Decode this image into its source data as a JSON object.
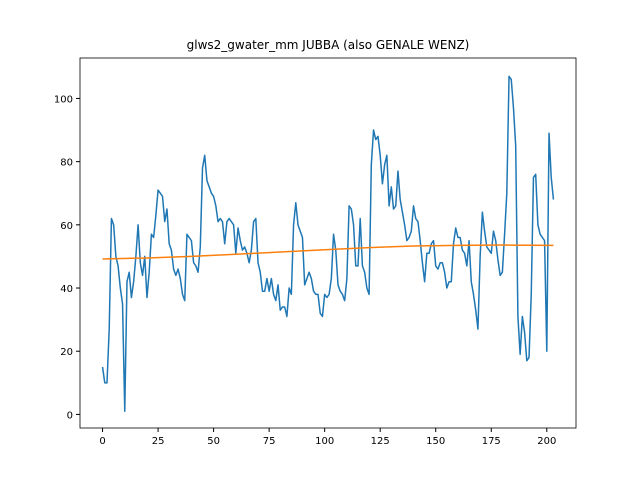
{
  "chart_data": {
    "type": "line",
    "title": "glws2_gwater_mm JUBBA (also GENALE WENZ)",
    "x": [
      0,
      1,
      2,
      3,
      4,
      5,
      6,
      7,
      8,
      9,
      10,
      11,
      12,
      13,
      14,
      15,
      16,
      17,
      18,
      19,
      20,
      21,
      22,
      23,
      24,
      25,
      26,
      27,
      28,
      29,
      30,
      31,
      32,
      33,
      34,
      35,
      36,
      37,
      38,
      39,
      40,
      41,
      42,
      43,
      44,
      45,
      46,
      47,
      48,
      49,
      50,
      51,
      52,
      53,
      54,
      55,
      56,
      57,
      58,
      59,
      60,
      61,
      62,
      63,
      64,
      65,
      66,
      67,
      68,
      69,
      70,
      71,
      72,
      73,
      74,
      75,
      76,
      77,
      78,
      79,
      80,
      81,
      82,
      83,
      84,
      85,
      86,
      87,
      88,
      89,
      90,
      91,
      92,
      93,
      94,
      95,
      96,
      97,
      98,
      99,
      100,
      101,
      102,
      103,
      104,
      105,
      106,
      107,
      108,
      109,
      110,
      111,
      112,
      113,
      114,
      115,
      116,
      117,
      118,
      119,
      120,
      121,
      122,
      123,
      124,
      125,
      126,
      127,
      128,
      129,
      130,
      131,
      132,
      133,
      134,
      135,
      136,
      137,
      138,
      139,
      140,
      141,
      142,
      143,
      144,
      145,
      146,
      147,
      148,
      149,
      150,
      151,
      152,
      153,
      154,
      155,
      156,
      157,
      158,
      159,
      160,
      161,
      162,
      163,
      164,
      165,
      166,
      167,
      168,
      169,
      170,
      171,
      172,
      173,
      174,
      175,
      176,
      177,
      178,
      179,
      180,
      181,
      182,
      183,
      184,
      185,
      186,
      187,
      188,
      189,
      190,
      191,
      192,
      193,
      194,
      195,
      196,
      197,
      198,
      199,
      200,
      201,
      202,
      203
    ],
    "series": [
      {
        "color": "#1f77b4",
        "values": [
          15,
          10,
          10,
          27,
          62,
          60,
          50,
          47,
          40,
          35,
          1,
          42,
          45,
          37,
          42,
          50,
          60,
          48,
          44,
          50,
          37,
          45,
          57,
          56,
          63,
          71,
          70,
          69,
          61,
          65,
          54,
          52,
          46,
          44,
          46,
          43,
          38,
          36,
          57,
          56,
          55,
          48,
          47,
          45,
          53,
          78,
          82,
          74,
          72,
          70,
          69,
          66,
          61,
          62,
          61,
          54,
          61,
          62,
          61,
          60,
          51,
          59,
          55,
          52,
          53,
          51,
          48,
          52,
          61,
          62,
          48,
          45,
          39,
          39,
          43,
          39,
          43,
          38,
          36,
          41,
          33,
          34,
          34,
          31,
          40,
          38,
          60,
          67,
          60,
          58,
          56,
          41,
          43,
          45,
          43,
          39,
          38,
          38,
          32,
          31,
          38,
          37,
          38,
          43,
          57,
          52,
          41,
          39,
          38,
          36,
          43,
          66,
          65,
          60,
          47,
          47,
          62,
          47,
          45,
          40,
          38,
          79,
          90,
          87,
          88,
          82,
          73,
          79,
          82,
          66,
          72,
          65,
          66,
          77,
          68,
          64,
          60,
          55,
          56,
          58,
          66,
          62,
          61,
          55,
          48,
          42,
          51,
          51,
          54,
          55,
          47,
          46,
          48,
          48,
          45,
          40,
          42,
          42,
          54,
          59,
          56,
          56,
          52,
          51,
          47,
          55,
          42,
          38,
          33,
          27,
          50,
          64,
          58,
          53,
          52,
          51,
          58,
          55,
          49,
          44,
          45,
          57,
          70,
          107,
          106,
          97,
          85,
          31,
          19,
          31,
          26,
          17,
          18,
          38,
          75,
          76,
          60,
          57,
          56,
          55,
          20,
          89,
          75,
          68
        ]
      },
      {
        "color": "#ff7f0e",
        "x": [
          0,
          20,
          40,
          60,
          80,
          100,
          120,
          140,
          160,
          180,
          203
        ],
        "values": [
          49.2,
          49.5,
          50.0,
          50.7,
          51.4,
          52.1,
          52.8,
          53.3,
          53.5,
          53.6,
          53.5
        ]
      }
    ],
    "xlim": [
      -10.15,
      213.15
    ],
    "ylim": [
      -4.3,
      112.8
    ],
    "xticks": [
      0,
      25,
      50,
      75,
      100,
      125,
      150,
      175,
      200
    ],
    "yticks": [
      0,
      20,
      40,
      60,
      80,
      100
    ]
  }
}
